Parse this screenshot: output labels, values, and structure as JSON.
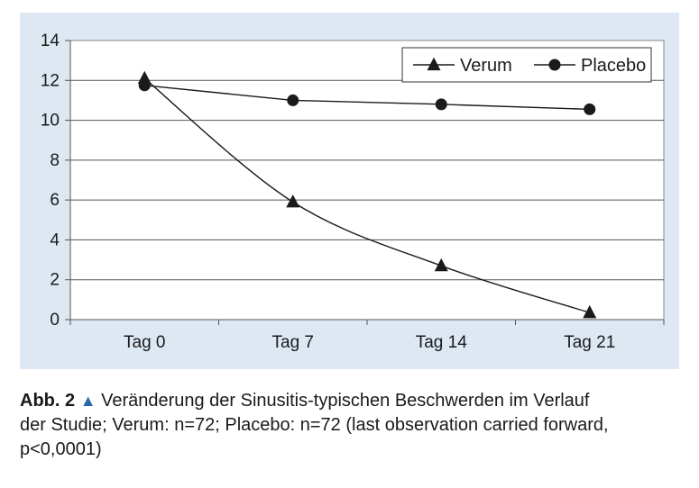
{
  "chart_data": {
    "type": "line",
    "categories": [
      "Tag 0",
      "Tag 7",
      "Tag 14",
      "Tag 21"
    ],
    "series": [
      {
        "name": "Verum",
        "marker": "triangle",
        "values": [
          12.1,
          5.9,
          2.7,
          0.35
        ]
      },
      {
        "name": "Placebo",
        "marker": "circle",
        "values": [
          11.75,
          11.0,
          10.8,
          10.55
        ]
      }
    ],
    "ylim": [
      0,
      14
    ],
    "yticks": [
      0,
      2,
      4,
      6,
      8,
      10,
      12,
      14
    ],
    "grid": "horizontal",
    "legend": "top-right",
    "colors": {
      "background": "#dde8f3",
      "plot": "#ffffff",
      "line": "#1a1a1a"
    }
  },
  "caption": {
    "label": "Abb. 2",
    "marker": "▲",
    "text_line1": "Veränderung der Sinusitis-typischen Beschwerden im Verlauf",
    "text_line2": "der Studie; Verum: n=72; Placebo: n=72 (last observation carried forward,",
    "text_line3": "p<0,0001)"
  }
}
